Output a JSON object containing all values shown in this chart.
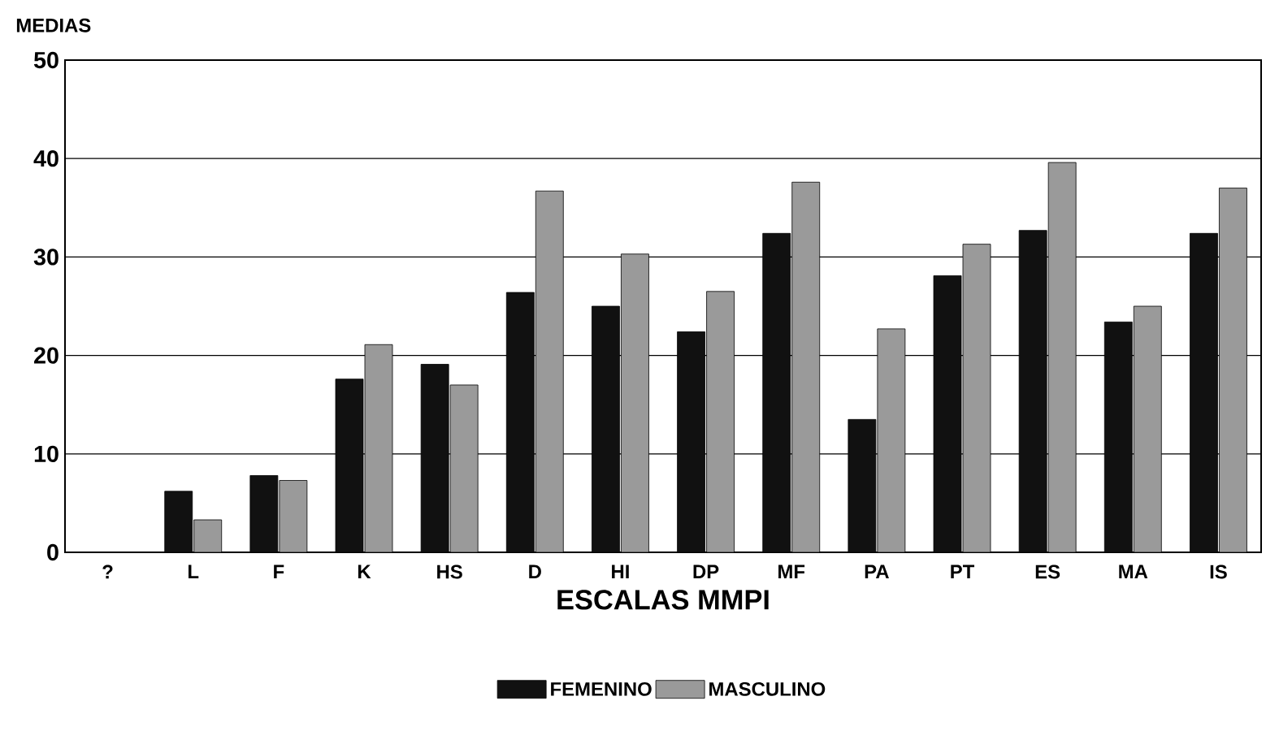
{
  "chart_data": {
    "type": "bar",
    "ylabel": "MEDIAS",
    "xlabel": "ESCALAS MMPI",
    "categories": [
      "?",
      "L",
      "F",
      "K",
      "HS",
      "D",
      "HI",
      "DP",
      "MF",
      "PA",
      "PT",
      "ES",
      "MA",
      "IS"
    ],
    "series": [
      {
        "name": "FEMENINO",
        "color": "#111111",
        "values": [
          null,
          6.2,
          7.8,
          17.6,
          19.1,
          26.4,
          25.0,
          22.4,
          32.4,
          13.5,
          28.1,
          32.7,
          23.4,
          32.4
        ]
      },
      {
        "name": "MASCULINO",
        "color": "#9a9a9a",
        "values": [
          null,
          3.3,
          7.3,
          21.1,
          17.0,
          36.7,
          30.3,
          26.5,
          37.6,
          22.7,
          31.3,
          39.6,
          25.0,
          37.0
        ]
      }
    ],
    "ylim": [
      0,
      50
    ],
    "yticks": [
      0,
      10,
      20,
      30,
      40,
      50
    ],
    "grid": "y",
    "legend": "bottom"
  }
}
